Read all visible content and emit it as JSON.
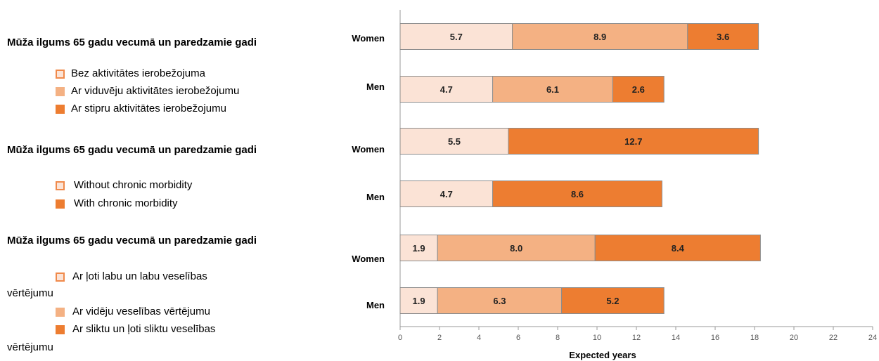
{
  "legend_groups": [
    {
      "title": "Mūža ilgums 65 gadu vecumā un paredzamie gadi",
      "items": [
        {
          "label": "Bez aktivitātes ierobežojuma",
          "color": "#fbe3d6",
          "border": "#f08a4b"
        },
        {
          "label": "Ar viduvēju aktivitātes ierobežojumu",
          "color": "#f4b183",
          "border": "#f4b183"
        },
        {
          "label": "Ar stipru aktivitātes ierobežojumu",
          "color": "#ed7d31",
          "border": "#ed7d31"
        }
      ]
    },
    {
      "title": "Mūža ilgums 65 gadu vecumā un paredzamie gadi",
      "items": [
        {
          "label": "Without chronic morbidity",
          "color": "#fbe3d6",
          "border": "#f08a4b"
        },
        {
          "label": "With chronic morbidity",
          "color": "#ed7d31",
          "border": "#ed7d31"
        }
      ]
    },
    {
      "title": "Mūža ilgums 65 gadu vecumā un paredzamie gadi",
      "items": [
        {
          "label_line1": "Ar ļoti labu un labu veselības",
          "label_line2": "vērtējumu",
          "color": "#fbe3d6",
          "border": "#f08a4b"
        },
        {
          "label": "Ar vidēju veselības vērtējumu",
          "color": "#f4b183",
          "border": "#f4b183"
        },
        {
          "label_line1": "Ar sliktu un ļoti sliktu veselības",
          "label_line2": "vērtējumu",
          "color": "#ed7d31",
          "border": "#ed7d31"
        }
      ]
    }
  ],
  "chart_data": {
    "type": "bar",
    "orientation": "horizontal",
    "stacked": true,
    "xlabel": "Expected years",
    "xlim": [
      0,
      24
    ],
    "xticks": [
      0,
      2,
      4,
      6,
      8,
      10,
      12,
      14,
      16,
      18,
      20,
      22,
      24
    ],
    "grid": false,
    "categories": [
      "Women",
      "Men",
      "Women",
      "Men",
      "Women",
      "Men"
    ],
    "bars": [
      {
        "label": "Women",
        "segments": [
          5.7,
          8.9,
          3.6
        ],
        "colors": [
          "#fbe3d6",
          "#f4b183",
          "#ed7d31"
        ]
      },
      {
        "label": "Men",
        "segments": [
          4.7,
          6.1,
          2.6
        ],
        "colors": [
          "#fbe3d6",
          "#f4b183",
          "#ed7d31"
        ]
      },
      {
        "label": "Women",
        "segments": [
          5.5,
          12.7
        ],
        "colors": [
          "#fbe3d6",
          "#ed7d31"
        ]
      },
      {
        "label": "Men",
        "segments": [
          4.7,
          8.6
        ],
        "colors": [
          "#fbe3d6",
          "#ed7d31"
        ]
      },
      {
        "label": "Women",
        "segments": [
          1.9,
          8.0,
          8.4
        ],
        "colors": [
          "#fbe3d6",
          "#f4b183",
          "#ed7d31"
        ]
      },
      {
        "label": "Men",
        "segments": [
          1.9,
          6.3,
          5.2
        ],
        "colors": [
          "#fbe3d6",
          "#f4b183",
          "#ed7d31"
        ]
      }
    ]
  }
}
